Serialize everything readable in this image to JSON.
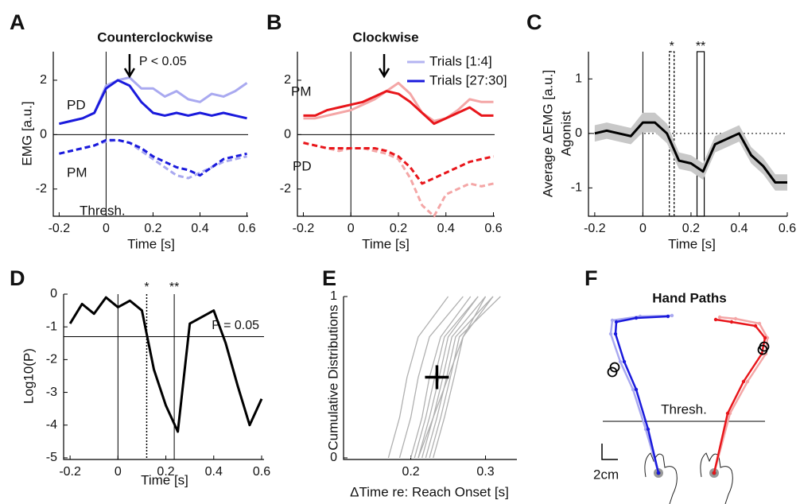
{
  "chart_data": [
    {
      "type": "line",
      "panel": "A",
      "title": "Counterclockwise",
      "xlabel": "Time [s]",
      "ylabel": "EMG [a.u.]",
      "x": [
        -0.2,
        -0.15,
        -0.1,
        -0.05,
        0,
        0.05,
        0.1,
        0.15,
        0.2,
        0.25,
        0.3,
        0.35,
        0.4,
        0.45,
        0.5,
        0.55,
        0.6
      ],
      "xlim": [
        -0.225,
        0.605
      ],
      "xticks": [
        -0.2,
        0,
        0.2,
        0.4,
        0.6
      ],
      "ylim": [
        -3,
        3.05
      ],
      "yticks": [
        -2,
        0,
        2
      ],
      "hline": 0,
      "vline": 0,
      "arrow_x": 0.1,
      "arrow_label": "P < 0.05",
      "annotations": [
        "PD",
        "PM",
        "Thresh."
      ],
      "series": [
        {
          "color": "#a9a9f0",
          "dashed": false,
          "values": [
            0.4,
            0.5,
            0.6,
            0.8,
            1.8,
            2.0,
            2.1,
            1.7,
            1.7,
            1.4,
            1.6,
            1.3,
            1.2,
            1.5,
            1.4,
            1.6,
            1.9
          ]
        },
        {
          "color": "#1a1adc",
          "dashed": false,
          "values": [
            0.4,
            0.5,
            0.6,
            0.8,
            1.7,
            2.0,
            1.8,
            1.2,
            0.8,
            0.7,
            0.8,
            0.7,
            0.8,
            0.7,
            0.8,
            0.7,
            0.6
          ]
        },
        {
          "color": "#a9a9f0",
          "dashed": true,
          "values": [
            -0.7,
            -0.6,
            -0.5,
            -0.4,
            -0.25,
            -0.2,
            -0.3,
            -0.6,
            -0.9,
            -1.2,
            -1.5,
            -1.6,
            -1.4,
            -1.2,
            -1.0,
            -0.9,
            -0.8
          ]
        },
        {
          "color": "#1a1adc",
          "dashed": true,
          "values": [
            -0.7,
            -0.6,
            -0.5,
            -0.4,
            -0.2,
            -0.2,
            -0.3,
            -0.5,
            -0.8,
            -1.0,
            -1.2,
            -1.3,
            -1.5,
            -1.2,
            -0.9,
            -0.8,
            -0.7
          ]
        }
      ]
    },
    {
      "type": "line",
      "panel": "B",
      "title": "Clockwise",
      "xlabel": "Time [s]",
      "x": [
        -0.2,
        -0.15,
        -0.1,
        -0.05,
        0,
        0.05,
        0.1,
        0.15,
        0.2,
        0.25,
        0.3,
        0.35,
        0.4,
        0.45,
        0.5,
        0.55,
        0.6
      ],
      "xlim": [
        -0.225,
        0.605
      ],
      "xticks": [
        -0.2,
        0,
        0.2,
        0.4,
        0.6
      ],
      "ylim": [
        -3,
        3.05
      ],
      "yticks": [
        -2,
        0,
        2
      ],
      "hline": 0,
      "vline": 0,
      "arrow_x": 0.14,
      "annotations": [
        "PM",
        "PD"
      ],
      "legend": [
        {
          "name": "Trials [1:4]",
          "color": "#b4b4f2"
        },
        {
          "name": "Trials [27:30]",
          "color": "#1a1adc"
        }
      ],
      "series": [
        {
          "color": "#f4a6a6",
          "dashed": false,
          "values": [
            0.6,
            0.6,
            0.7,
            0.8,
            0.9,
            1.1,
            1.3,
            1.6,
            1.9,
            1.5,
            0.8,
            0.5,
            0.6,
            0.9,
            1.3,
            1.2,
            1.2
          ]
        },
        {
          "color": "#e8161b",
          "dashed": false,
          "values": [
            0.7,
            0.7,
            0.9,
            1.0,
            1.1,
            1.2,
            1.4,
            1.6,
            1.5,
            1.2,
            0.8,
            0.4,
            0.6,
            0.8,
            1.0,
            0.7,
            0.7
          ]
        },
        {
          "color": "#f4a6a6",
          "dashed": true,
          "values": [
            -0.3,
            -0.4,
            -0.5,
            -0.6,
            -0.5,
            -0.5,
            -0.6,
            -0.7,
            -0.9,
            -1.6,
            -2.6,
            -3.0,
            -2.2,
            -2.0,
            -1.8,
            -1.9,
            -1.8
          ]
        },
        {
          "color": "#e8161b",
          "dashed": true,
          "values": [
            -0.3,
            -0.4,
            -0.5,
            -0.5,
            -0.5,
            -0.5,
            -0.5,
            -0.6,
            -0.8,
            -1.2,
            -1.8,
            -1.6,
            -1.4,
            -1.2,
            -1.0,
            -0.9,
            -0.8
          ]
        }
      ]
    },
    {
      "type": "line",
      "panel": "C",
      "xlabel": "Time [s]",
      "ylabel": [
        "Average ΔEMG [a.u.]",
        "Agonist"
      ],
      "x": [
        -0.2,
        -0.15,
        -0.1,
        -0.05,
        0,
        0.05,
        0.1,
        0.15,
        0.2,
        0.25,
        0.3,
        0.35,
        0.4,
        0.45,
        0.5,
        0.55,
        0.6
      ],
      "xlim": [
        -0.226,
        0.6
      ],
      "xticks": [
        -0.2,
        0,
        0.2,
        0.4,
        0.6
      ],
      "ylim": [
        -1.52,
        1.5
      ],
      "yticks": [
        -1,
        0,
        1
      ],
      "hline": 0,
      "hline_dotted": true,
      "vline": 0,
      "windows": [
        {
          "x": [
            0.11,
            0.13
          ],
          "label": "*",
          "dashed": true
        },
        {
          "x": [
            0.225,
            0.255
          ],
          "label": "**",
          "dashed": false
        }
      ],
      "series": [
        {
          "color": "#000000",
          "dashed": false,
          "error_color": "#c8c8c8",
          "values": [
            0,
            0.05,
            0,
            -0.05,
            0.2,
            0.2,
            0,
            -0.5,
            -0.55,
            -0.7,
            -0.2,
            -0.1,
            0,
            -0.4,
            -0.6,
            -0.9,
            -0.9
          ],
          "error": [
            0.15,
            0.15,
            0.15,
            0.15,
            0.18,
            0.18,
            0.18,
            0.15,
            0.15,
            0.15,
            0.15,
            0.15,
            0.15,
            0.15,
            0.15,
            0.15,
            0.15
          ]
        }
      ]
    },
    {
      "type": "line",
      "panel": "D",
      "xlabel": "Time [s]",
      "ylabel": "Log10(P)",
      "x": [
        -0.2,
        -0.15,
        -0.1,
        -0.05,
        0,
        0.05,
        0.1,
        0.15,
        0.2,
        0.25,
        0.3,
        0.35,
        0.4,
        0.45,
        0.5,
        0.55,
        0.6
      ],
      "xlim": [
        -0.227,
        0.61
      ],
      "xticks": [
        -0.2,
        0,
        0.2,
        0.4,
        0.6
      ],
      "ylim": [
        -5.05,
        0
      ],
      "yticks": [
        0,
        -1,
        -2,
        -3,
        -4,
        -5
      ],
      "hline": -1.3,
      "hline_label": "P = 0.05",
      "vlines": [
        {
          "x": 0,
          "dotted": false
        },
        {
          "x": 0.12,
          "dotted": true,
          "label": "*"
        },
        {
          "x": 0.235,
          "dotted": false,
          "label": "**"
        }
      ],
      "series": [
        {
          "color": "#000000",
          "dashed": false,
          "values": [
            -0.9,
            -0.3,
            -0.6,
            -0.1,
            -0.4,
            -0.2,
            -0.5,
            -2.3,
            -3.4,
            -4.2,
            -0.9,
            -0.7,
            -0.5,
            -1.5,
            -2.8,
            -4.0,
            -3.2
          ]
        }
      ]
    },
    {
      "type": "cdf",
      "panel": "E",
      "xlabel": "ΔTime re: Reach Onset [s]",
      "ylabel": "Cumulative Distributions",
      "xlim": [
        0.11,
        0.342
      ],
      "xticks": [
        0.2,
        0.3
      ],
      "ylim": [
        -0.01,
        1
      ],
      "yticks": [
        0,
        1
      ],
      "levels": [
        0,
        0.25,
        0.5,
        0.75,
        1
      ],
      "color": "#b0b0b0",
      "mean": [
        0.235,
        0.5
      ],
      "series": [
        {
          "x": [
            0.17,
            0.185,
            0.195,
            0.21,
            0.25
          ]
        },
        {
          "x": [
            0.185,
            0.2,
            0.21,
            0.225,
            0.27
          ]
        },
        {
          "x": [
            0.2,
            0.215,
            0.225,
            0.24,
            0.28
          ]
        },
        {
          "x": [
            0.205,
            0.22,
            0.232,
            0.245,
            0.29
          ]
        },
        {
          "x": [
            0.21,
            0.225,
            0.238,
            0.25,
            0.29
          ]
        },
        {
          "x": [
            0.215,
            0.23,
            0.243,
            0.255,
            0.3
          ]
        },
        {
          "x": [
            0.22,
            0.235,
            0.248,
            0.26,
            0.31
          ]
        },
        {
          "x": [
            0.225,
            0.24,
            0.253,
            0.265,
            0.32
          ]
        },
        {
          "x": [
            0.21,
            0.23,
            0.25,
            0.27,
            0.31
          ]
        },
        {
          "x": [
            0.23,
            0.245,
            0.258,
            0.27,
            0.3
          ]
        }
      ]
    },
    {
      "type": "path",
      "panel": "F",
      "title": "Hand Paths",
      "xlim": [
        0,
        25
      ],
      "ylim": [
        0,
        25
      ],
      "hline": 8.5,
      "hline_x": [
        1.8,
        22.2
      ],
      "hline_label": "Thresh.",
      "scalebar": 2,
      "scalebar_label": "2cm",
      "crossings_x": [
        3.0,
        3.3,
        21.9,
        22.1
      ],
      "crossings_y": [
        14.7,
        15.3,
        17.5,
        17.9
      ],
      "series": [
        {
          "color": "#a9a9f0",
          "x": [
            8.8,
            7.2,
            5.6,
            4.0,
            2.8,
            3.0,
            6.5,
            10.5
          ],
          "y": [
            2.0,
            7.5,
            12.5,
            16.0,
            19.5,
            21.2,
            21.7,
            21.8
          ]
        },
        {
          "color": "#1a1adc",
          "x": [
            8.8,
            7.5,
            6.0,
            4.5,
            3.4,
            3.5,
            6.0,
            10.0
          ],
          "y": [
            2.0,
            7.5,
            12.5,
            16.0,
            19.5,
            21.0,
            21.5,
            21.7
          ]
        },
        {
          "color": "#f4a6a6",
          "x": [
            15.8,
            17.8,
            20.0,
            22.3,
            22.5,
            21.5,
            18.5,
            16.5
          ],
          "y": [
            2.0,
            9.5,
            13.5,
            17.0,
            19.0,
            20.8,
            21.4,
            21.6
          ]
        },
        {
          "color": "#e8161b",
          "x": [
            15.8,
            17.5,
            19.5,
            21.8,
            22.2,
            21.0,
            18.0,
            16.0
          ],
          "y": [
            2.0,
            9.5,
            13.5,
            17.0,
            19.0,
            20.5,
            21.0,
            21.3
          ]
        }
      ]
    }
  ]
}
